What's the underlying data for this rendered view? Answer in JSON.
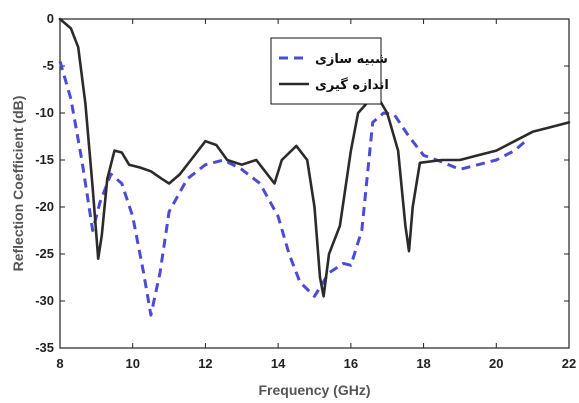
{
  "chart_data": {
    "type": "line",
    "title": "",
    "xlabel": "Frequency (GHz)",
    "ylabel": "Reflection Coefficient (dB)",
    "xlim": [
      8,
      22
    ],
    "ylim": [
      -35,
      0
    ],
    "xticks": [
      8,
      10,
      12,
      14,
      16,
      18,
      20,
      22
    ],
    "yticks": [
      0,
      -5,
      -10,
      -15,
      -20,
      -25,
      -30,
      -35
    ],
    "grid": false,
    "legend_position": "top-center",
    "series": [
      {
        "name": "شبیه سازی",
        "color": "#4b4bd6",
        "line_style": "dashed",
        "x": [
          8,
          8.3,
          8.6,
          8.9,
          9.1,
          9.4,
          9.7,
          10,
          10.3,
          10.5,
          10.75,
          11,
          11.5,
          12,
          12.5,
          13,
          13.5,
          14,
          14.3,
          14.6,
          15,
          15.4,
          15.8,
          16,
          16.3,
          16.6,
          16.9,
          17.2,
          17.6,
          18,
          18.5,
          19,
          19.5,
          20,
          20.5,
          20.8
        ],
        "y": [
          -4.5,
          -8.5,
          -15,
          -22.5,
          -19.5,
          -16.5,
          -17.5,
          -21,
          -27,
          -31.5,
          -27,
          -20.5,
          -17,
          -15.5,
          -15,
          -16,
          -17.5,
          -21,
          -25,
          -28,
          -29.5,
          -27,
          -26,
          -26.2,
          -22.5,
          -11,
          -10,
          -10.2,
          -12.5,
          -14.5,
          -15.2,
          -16,
          -15.5,
          -15,
          -14,
          -13
        ]
      },
      {
        "name": "اندازه گیری",
        "color": "#2b2b2b",
        "line_style": "solid",
        "x": [
          8,
          8.3,
          8.5,
          8.7,
          8.9,
          9.05,
          9.15,
          9.3,
          9.5,
          9.7,
          9.9,
          10.2,
          10.5,
          10.8,
          11,
          11.3,
          11.6,
          12,
          12.3,
          12.6,
          13,
          13.4,
          13.7,
          13.9,
          14.1,
          14.5,
          14.8,
          15,
          15.15,
          15.25,
          15.4,
          15.7,
          16,
          16.2,
          16.5,
          16.8,
          17,
          17.3,
          17.5,
          17.6,
          17.7,
          17.9,
          18.5,
          19,
          19.5,
          20,
          20.5,
          21,
          21.5,
          22
        ],
        "y": [
          0,
          -1,
          -3,
          -9,
          -18,
          -25.5,
          -23,
          -17,
          -14,
          -14.2,
          -15.5,
          -15.8,
          -16.2,
          -17,
          -17.5,
          -16.5,
          -15,
          -13,
          -13.4,
          -15,
          -15.5,
          -15,
          -16.5,
          -17.5,
          -15,
          -13.5,
          -15,
          -20,
          -27.5,
          -29.5,
          -25,
          -22,
          -14,
          -10,
          -8.7,
          -8.7,
          -10,
          -14,
          -22,
          -24.7,
          -20,
          -15.3,
          -15,
          -15,
          -14.5,
          -14,
          -13,
          -12,
          -11.5,
          -11
        ]
      }
    ]
  }
}
